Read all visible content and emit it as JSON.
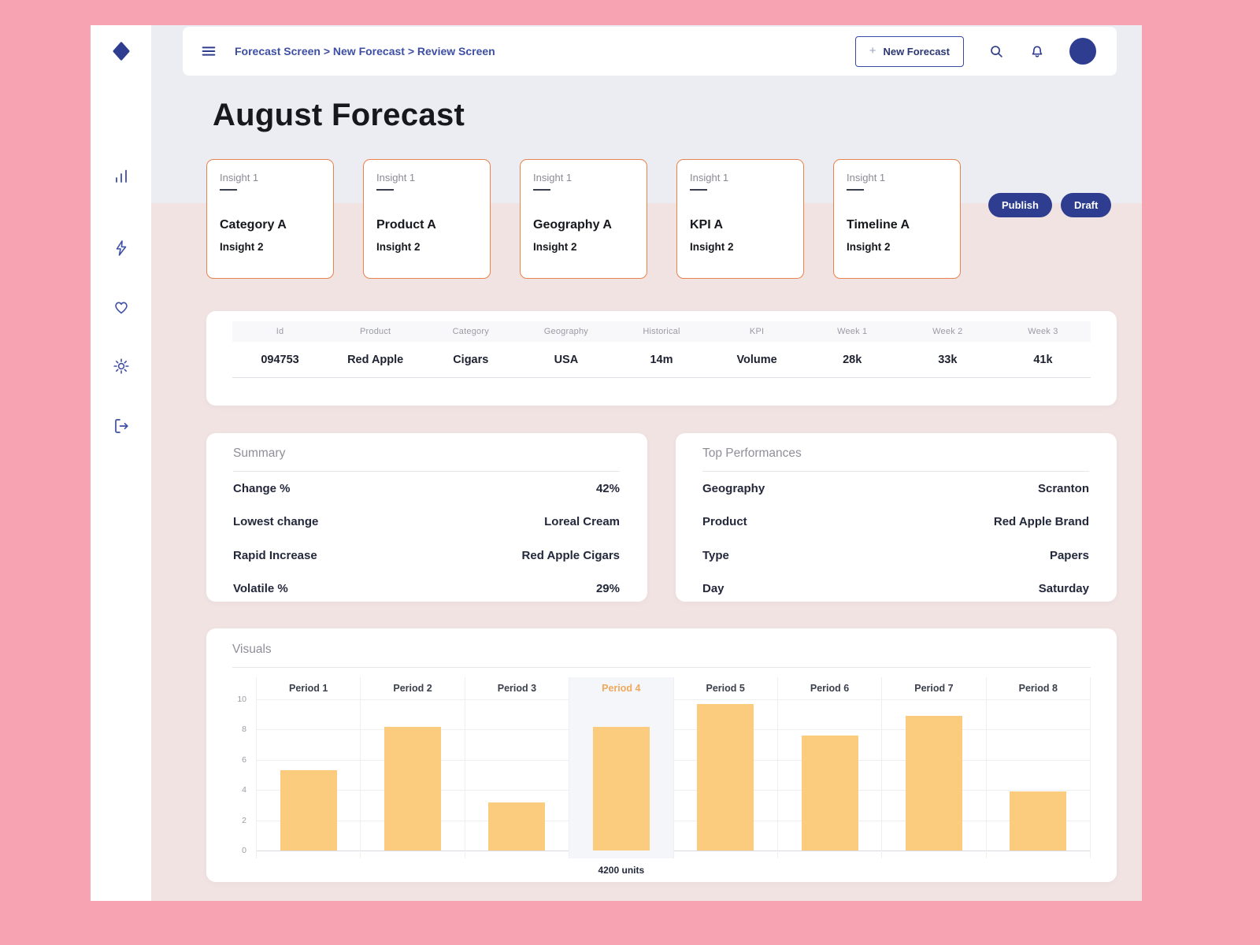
{
  "colors": {
    "frame_pink": "#F8A3B2",
    "accent_blue": "#2E3D8F",
    "band_gray": "#ECEDF3",
    "band_pink": "#F2E3E3",
    "insight_border_orange": "#E9824D",
    "bar_orange": "#FBCB7E",
    "highlight_label_orange": "#F0A95B"
  },
  "sidebar": {
    "icons": [
      {
        "name": "logo-diamond"
      },
      {
        "name": "bar-chart"
      },
      {
        "name": "lightning"
      },
      {
        "name": "heart"
      },
      {
        "name": "sun"
      },
      {
        "name": "logout"
      }
    ]
  },
  "header": {
    "breadcrumb": "Forecast Screen > New Forecast > Review Screen",
    "new_forecast_plus": "+",
    "new_forecast_button": "New Forecast"
  },
  "page": {
    "title": "August Forecast"
  },
  "insight_cards": [
    {
      "top_label": "Insight 1",
      "title": "Category A",
      "bottom_label": "Insight 2"
    },
    {
      "top_label": "Insight 1",
      "title": "Product A",
      "bottom_label": "Insight 2"
    },
    {
      "top_label": "Insight 1",
      "title": "Geography A",
      "bottom_label": "Insight 2"
    },
    {
      "top_label": "Insight 1",
      "title": "KPI A",
      "bottom_label": "Insight 2"
    },
    {
      "top_label": "Insight 1",
      "title": "Timeline A",
      "bottom_label": "Insight 2"
    }
  ],
  "actions": {
    "publish": "Publish",
    "draft": "Draft"
  },
  "table": {
    "headers": [
      "Id",
      "Product",
      "Category",
      "Geography",
      "Historical",
      "KPI",
      "Week 1",
      "Week 2",
      "Week 3"
    ],
    "rows": [
      [
        "094753",
        "Red Apple",
        "Cigars",
        "USA",
        "14m",
        "Volume",
        "28k",
        "33k",
        "41k"
      ]
    ]
  },
  "summary": {
    "title": "Summary",
    "rows": [
      {
        "label": "Change %",
        "value": "42%"
      },
      {
        "label": "Lowest change",
        "value": "Loreal Cream"
      },
      {
        "label": "Rapid Increase",
        "value": "Red Apple Cigars"
      },
      {
        "label": "Volatile %",
        "value": "29%"
      }
    ]
  },
  "top_performances": {
    "title": "Top Performances",
    "rows": [
      {
        "label": "Geography",
        "value": "Scranton"
      },
      {
        "label": "Product",
        "value": "Red Apple Brand"
      },
      {
        "label": "Type",
        "value": "Papers"
      },
      {
        "label": "Day",
        "value": "Saturday"
      }
    ]
  },
  "visuals": {
    "title": "Visuals"
  },
  "chart_data": {
    "type": "bar",
    "title": "Visuals",
    "categories": [
      "Period 1",
      "Period 2",
      "Period 3",
      "Period 4",
      "Period 5",
      "Period 6",
      "Period 7",
      "Period 8"
    ],
    "values": [
      5.3,
      8.2,
      3.2,
      8.2,
      9.7,
      7.6,
      8.9,
      3.9
    ],
    "highlighted_category": "Period 4",
    "annotation": "4200 units",
    "xlabel": "",
    "ylabel": "",
    "ylim": [
      0,
      10
    ],
    "yticks": [
      0,
      2,
      4,
      6,
      8,
      10
    ],
    "grid": true,
    "legend": false,
    "bar_color": "#FBCB7E"
  }
}
